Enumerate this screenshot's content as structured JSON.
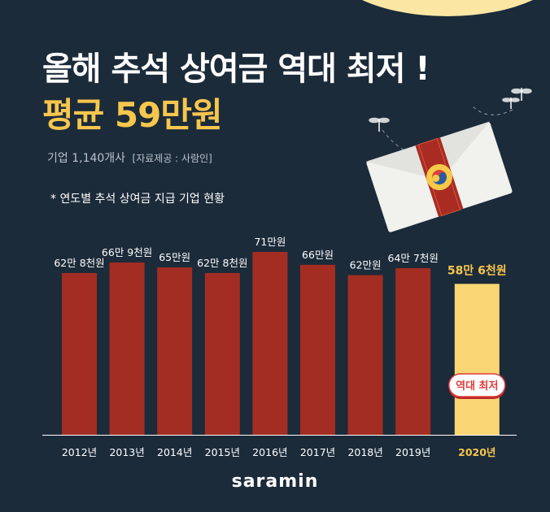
{
  "header": {
    "title": "올해 추석 상여금 역대 최저 !",
    "subtitle": "평균 59만원",
    "source_count": "기업 1,140개사",
    "source_credit": "[자료제공 : 사람인]"
  },
  "chart_caption": "* 연도별 추석 상여금 지급 기업 현황",
  "brand": "saramin",
  "colors": {
    "background": "#1c2b3a",
    "bar": "#a32d22",
    "highlight_bar": "#f9d673",
    "highlight_text": "#f6c64d",
    "badge": "#e23b3b"
  },
  "chart_data": {
    "type": "bar",
    "categories": [
      "2012년",
      "2013년",
      "2014년",
      "2015년",
      "2016년",
      "2017년",
      "2018년",
      "2019년",
      "2020년"
    ],
    "values": [
      62.8,
      66.9,
      65,
      62.8,
      71,
      66,
      62,
      64.7,
      58.6
    ],
    "value_labels": [
      "62만 8천원",
      "66만 9천원",
      "65만원",
      "62만 8천원",
      "71만원",
      "66만원",
      "62만원",
      "64만 7천원",
      "58만 6천원"
    ],
    "unit": "만원",
    "highlight_index": 8,
    "highlight_badge": "역대 최저",
    "ylim": [
      0,
      75
    ],
    "grid": false,
    "title": "",
    "xlabel": "",
    "ylabel": ""
  }
}
